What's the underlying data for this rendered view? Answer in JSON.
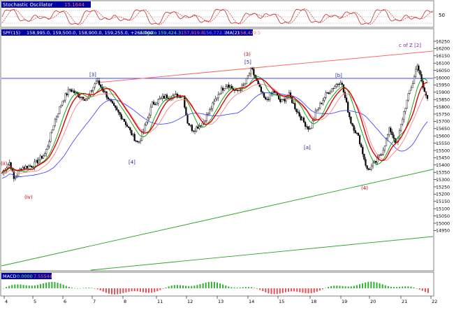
{
  "colors": {
    "panel_border": "#808080",
    "header_bg": "#0000a0",
    "hline": "#4040ff",
    "upper_trend": "#ff6a6a",
    "lower_trend": "#2aa52a",
    "ma_red": "#e00000",
    "ma_green": "#00a000",
    "ma_pink": "#ff8080",
    "ma_blue": "#4a4aff",
    "macd": "#e05050",
    "wave_blue": "#1f1f9a",
    "wave_red": "#d00000",
    "wave_purple": "#7a2a9a"
  },
  "chart_data": [
    {
      "type": "line",
      "panel": "oscillator",
      "header": {
        "name": "Stochastic Oscillator",
        "value": "15.1644"
      },
      "ylim": [
        0,
        100
      ],
      "levels": [
        80,
        50,
        20
      ],
      "right_ticks": [
        "50"
      ]
    },
    {
      "type": "candlestick",
      "panel": "price",
      "header": {
        "symbol": "SPF(15)",
        "ohlc": "158,995.0, 159,500.0, 158,900.0, 159,255.0, +265.000",
        "study": "Alligato",
        "study_values": [
          "159,424.3",
          "157,919.8",
          "156,772.1"
        ],
        "extra": "MA(2)",
        "extra_value": "158,429.5"
      },
      "ylim": [
        14900,
        16275
      ],
      "yticks": [
        16250,
        16200,
        16150,
        16100,
        16050,
        16000,
        15950,
        15900,
        15850,
        15800,
        15750,
        15700,
        15650,
        15600,
        15550,
        15500,
        15450,
        15400,
        15350,
        15300,
        15250,
        15200,
        15150,
        15100,
        15050,
        15000,
        14950
      ],
      "xticks": [
        "4",
        "5",
        "6",
        "7",
        "8",
        "11",
        "12",
        "13",
        "14",
        "15",
        "18",
        "19",
        "20",
        "21",
        "22"
      ],
      "hline": 15995,
      "annotations": [
        {
          "text": "[3]",
          "color": "wave_blue"
        },
        {
          "text": "[4]",
          "color": "wave_blue"
        },
        {
          "text": "(3)",
          "color": "wave_red"
        },
        {
          "text": "[5]",
          "color": "wave_blue"
        },
        {
          "text": "[b]",
          "color": "wave_blue"
        },
        {
          "text": "[a]",
          "color": "wave_blue"
        },
        {
          "text": "(4)",
          "color": "wave_red"
        },
        {
          "text": "(ii)",
          "color": "wave_red"
        },
        {
          "text": "(iv)",
          "color": "wave_red"
        },
        {
          "text": "c of Z  [2]",
          "color": "wave_purple"
        }
      ]
    },
    {
      "type": "bar",
      "panel": "macd",
      "header": {
        "name": "MACD",
        "values": [
          "0.0000",
          "7.55544"
        ]
      }
    }
  ]
}
